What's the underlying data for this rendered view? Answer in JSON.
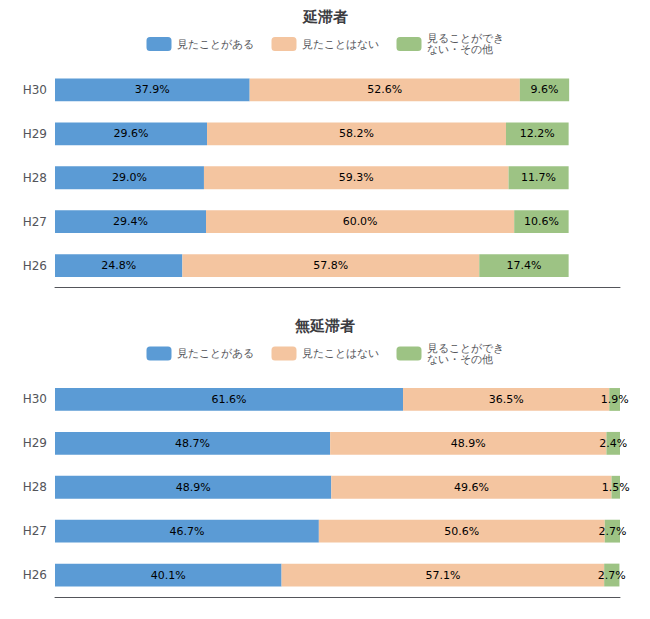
{
  "chart_data": [
    {
      "type": "bar",
      "title": "延滞者",
      "orientation": "horizontal",
      "stacked": true,
      "data_labels": true,
      "tick_labels": "y",
      "grid": false,
      "legend": "top",
      "categories": [
        "H30",
        "H29",
        "H28",
        "H27",
        "H26"
      ],
      "xlim": [
        0,
        110
      ],
      "series": [
        {
          "name": "見たことがある",
          "color": "#5B9BD5",
          "values": [
            37.9,
            29.6,
            29.0,
            29.4,
            24.8
          ],
          "value_labels": [
            "37.9%",
            "29.6%",
            "29.0%",
            "29.4%",
            "24.8%"
          ]
        },
        {
          "name": "見たことはない",
          "color": "#F4C5A0",
          "values": [
            52.6,
            58.2,
            59.3,
            60.0,
            57.8
          ],
          "value_labels": [
            "52.6%",
            "58.2%",
            "59.3%",
            "60.0%",
            "57.8%"
          ]
        },
        {
          "name": "見ることができ\nない・その他",
          "color": "#9DC384",
          "values": [
            9.6,
            12.2,
            11.7,
            10.6,
            17.4
          ],
          "value_labels": [
            "9.6%",
            "12.2%",
            "11.7%",
            "10.6%",
            "17.4%"
          ]
        }
      ]
    },
    {
      "type": "bar",
      "title": "無延滞者",
      "orientation": "horizontal",
      "stacked": true,
      "data_labels": true,
      "tick_labels": "y",
      "grid": false,
      "legend": "top",
      "categories": [
        "H30",
        "H29",
        "H28",
        "H27",
        "H26"
      ],
      "xlim": [
        0,
        100
      ],
      "series": [
        {
          "name": "見たことがある",
          "color": "#5B9BD5",
          "values": [
            61.6,
            48.7,
            48.9,
            46.7,
            40.1
          ],
          "value_labels": [
            "61.6%",
            "48.7%",
            "48.9%",
            "46.7%",
            "40.1%"
          ]
        },
        {
          "name": "見たことはない",
          "color": "#F4C5A0",
          "values": [
            36.5,
            48.9,
            49.6,
            50.6,
            57.1
          ],
          "value_labels": [
            "36.5%",
            "48.9%",
            "49.6%",
            "50.6%",
            "57.1%"
          ]
        },
        {
          "name": "見ることができ\nない・その他",
          "color": "#9DC384",
          "values": [
            1.9,
            2.4,
            1.5,
            2.7,
            2.7
          ],
          "value_labels": [
            "1.9%",
            "2.4%",
            "1.5%",
            "2.7%",
            "2.7%"
          ]
        }
      ]
    }
  ]
}
